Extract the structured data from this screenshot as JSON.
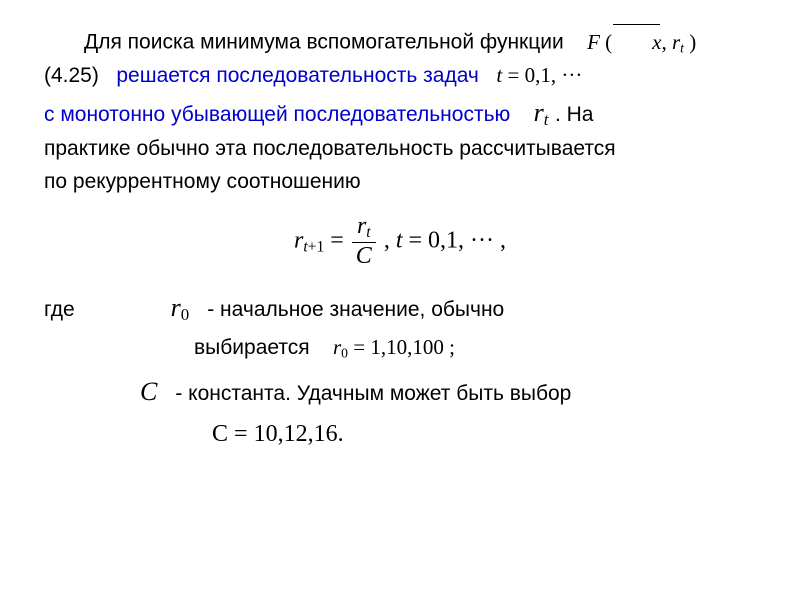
{
  "text": {
    "p1a": "Для поиска минимума вспомогательной функции",
    "p2a": "(4.25)",
    "p2b": "решается последовательность задач",
    "p3a": "с монотонно убывающей последовательностью",
    "p3b": ". На",
    "p4": "практике обычно эта последовательность рассчитывается",
    "p5": "по рекуррентному соотношению",
    "where": "где",
    "r0desc": "- начальное значение, обычно",
    "r0sel": "выбирается",
    "Cdesc": "- константа. Удачным может быть выбор"
  },
  "math": {
    "F_open": "F",
    "lpar": "(",
    "rpar": ")",
    "xbar": "x",
    "comma": ",",
    "r": "r",
    "t_sub": "t",
    "t0": "t",
    "eq": "=",
    "seq01": "0,1,",
    "dots": "···",
    "r_tplus1_sub": "t+1",
    "C": "C",
    "comma_sp": ",   ",
    "range_tail": ",",
    "r0_sub": "0",
    "r0_vals": "1,10,100",
    "semicolon": ";",
    "C_vals": "10,12,16.",
    "Croman": "C"
  },
  "style": {
    "text_color": "#000000",
    "highlight_color": "#0000cc",
    "background": "#ffffff",
    "body_font": "Arial",
    "math_font": "Times New Roman",
    "body_fontsize": 21,
    "formula_fontsize": 24,
    "symbol_fontsize": 26
  }
}
